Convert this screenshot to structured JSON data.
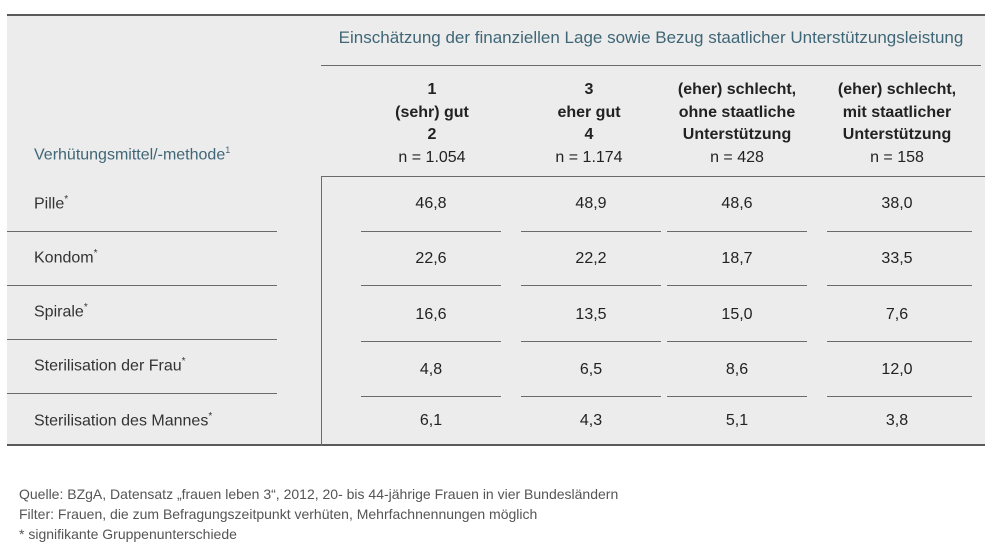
{
  "table": {
    "group_title": "Einschätzung der finanziellen Lage sowie Bezug staatlicher Unterstützungsleistung",
    "row_header": "Verhütungsmittel/-methode",
    "row_header_footnote": "1",
    "columns": [
      {
        "line1": "1",
        "line2": "(sehr) gut",
        "line3": "2",
        "n": "n = 1.054"
      },
      {
        "line1": "3",
        "line2": "eher gut",
        "line3": "4",
        "n": "n = 1.174"
      },
      {
        "line1": "(eher) schlecht,",
        "line2": "ohne staatliche",
        "line3": "Unterstützung",
        "n": "n = 428"
      },
      {
        "line1": "(eher) schlecht,",
        "line2": "mit staatlicher",
        "line3": "Unterstützung",
        "n": "n = 158"
      }
    ],
    "rows": [
      {
        "label": "Pille",
        "mark": "*",
        "values": [
          "46,8",
          "48,9",
          "48,6",
          "38,0"
        ]
      },
      {
        "label": "Kondom",
        "mark": "*",
        "values": [
          "22,6",
          "22,2",
          "18,7",
          "33,5"
        ]
      },
      {
        "label": "Spirale",
        "mark": "*",
        "values": [
          "16,6",
          "13,5",
          "15,0",
          "7,6"
        ]
      },
      {
        "label": "Sterilisation der Frau",
        "mark": "*",
        "values": [
          "4,8",
          "6,5",
          "8,6",
          "12,0"
        ]
      },
      {
        "label": "Sterilisation des Mannes",
        "mark": "*",
        "values": [
          "6,1",
          "4,3",
          "5,1",
          "3,8"
        ]
      }
    ]
  },
  "notes": {
    "source": "Quelle: BZgA, Datensatz „frauen leben 3“, 2012, 20- bis 44-jährige Frauen in vier Bundesländern",
    "filter": "Filter: Frauen, die zum Befragungszeitpunkt verhüten, Mehrfachnennungen möglich",
    "significance": "* signifikante Gruppenunterschiede"
  },
  "colors": {
    "panel_background": "#ececec",
    "heading_teal": "#3f6676",
    "rule_gray": "#6b6b6b"
  }
}
